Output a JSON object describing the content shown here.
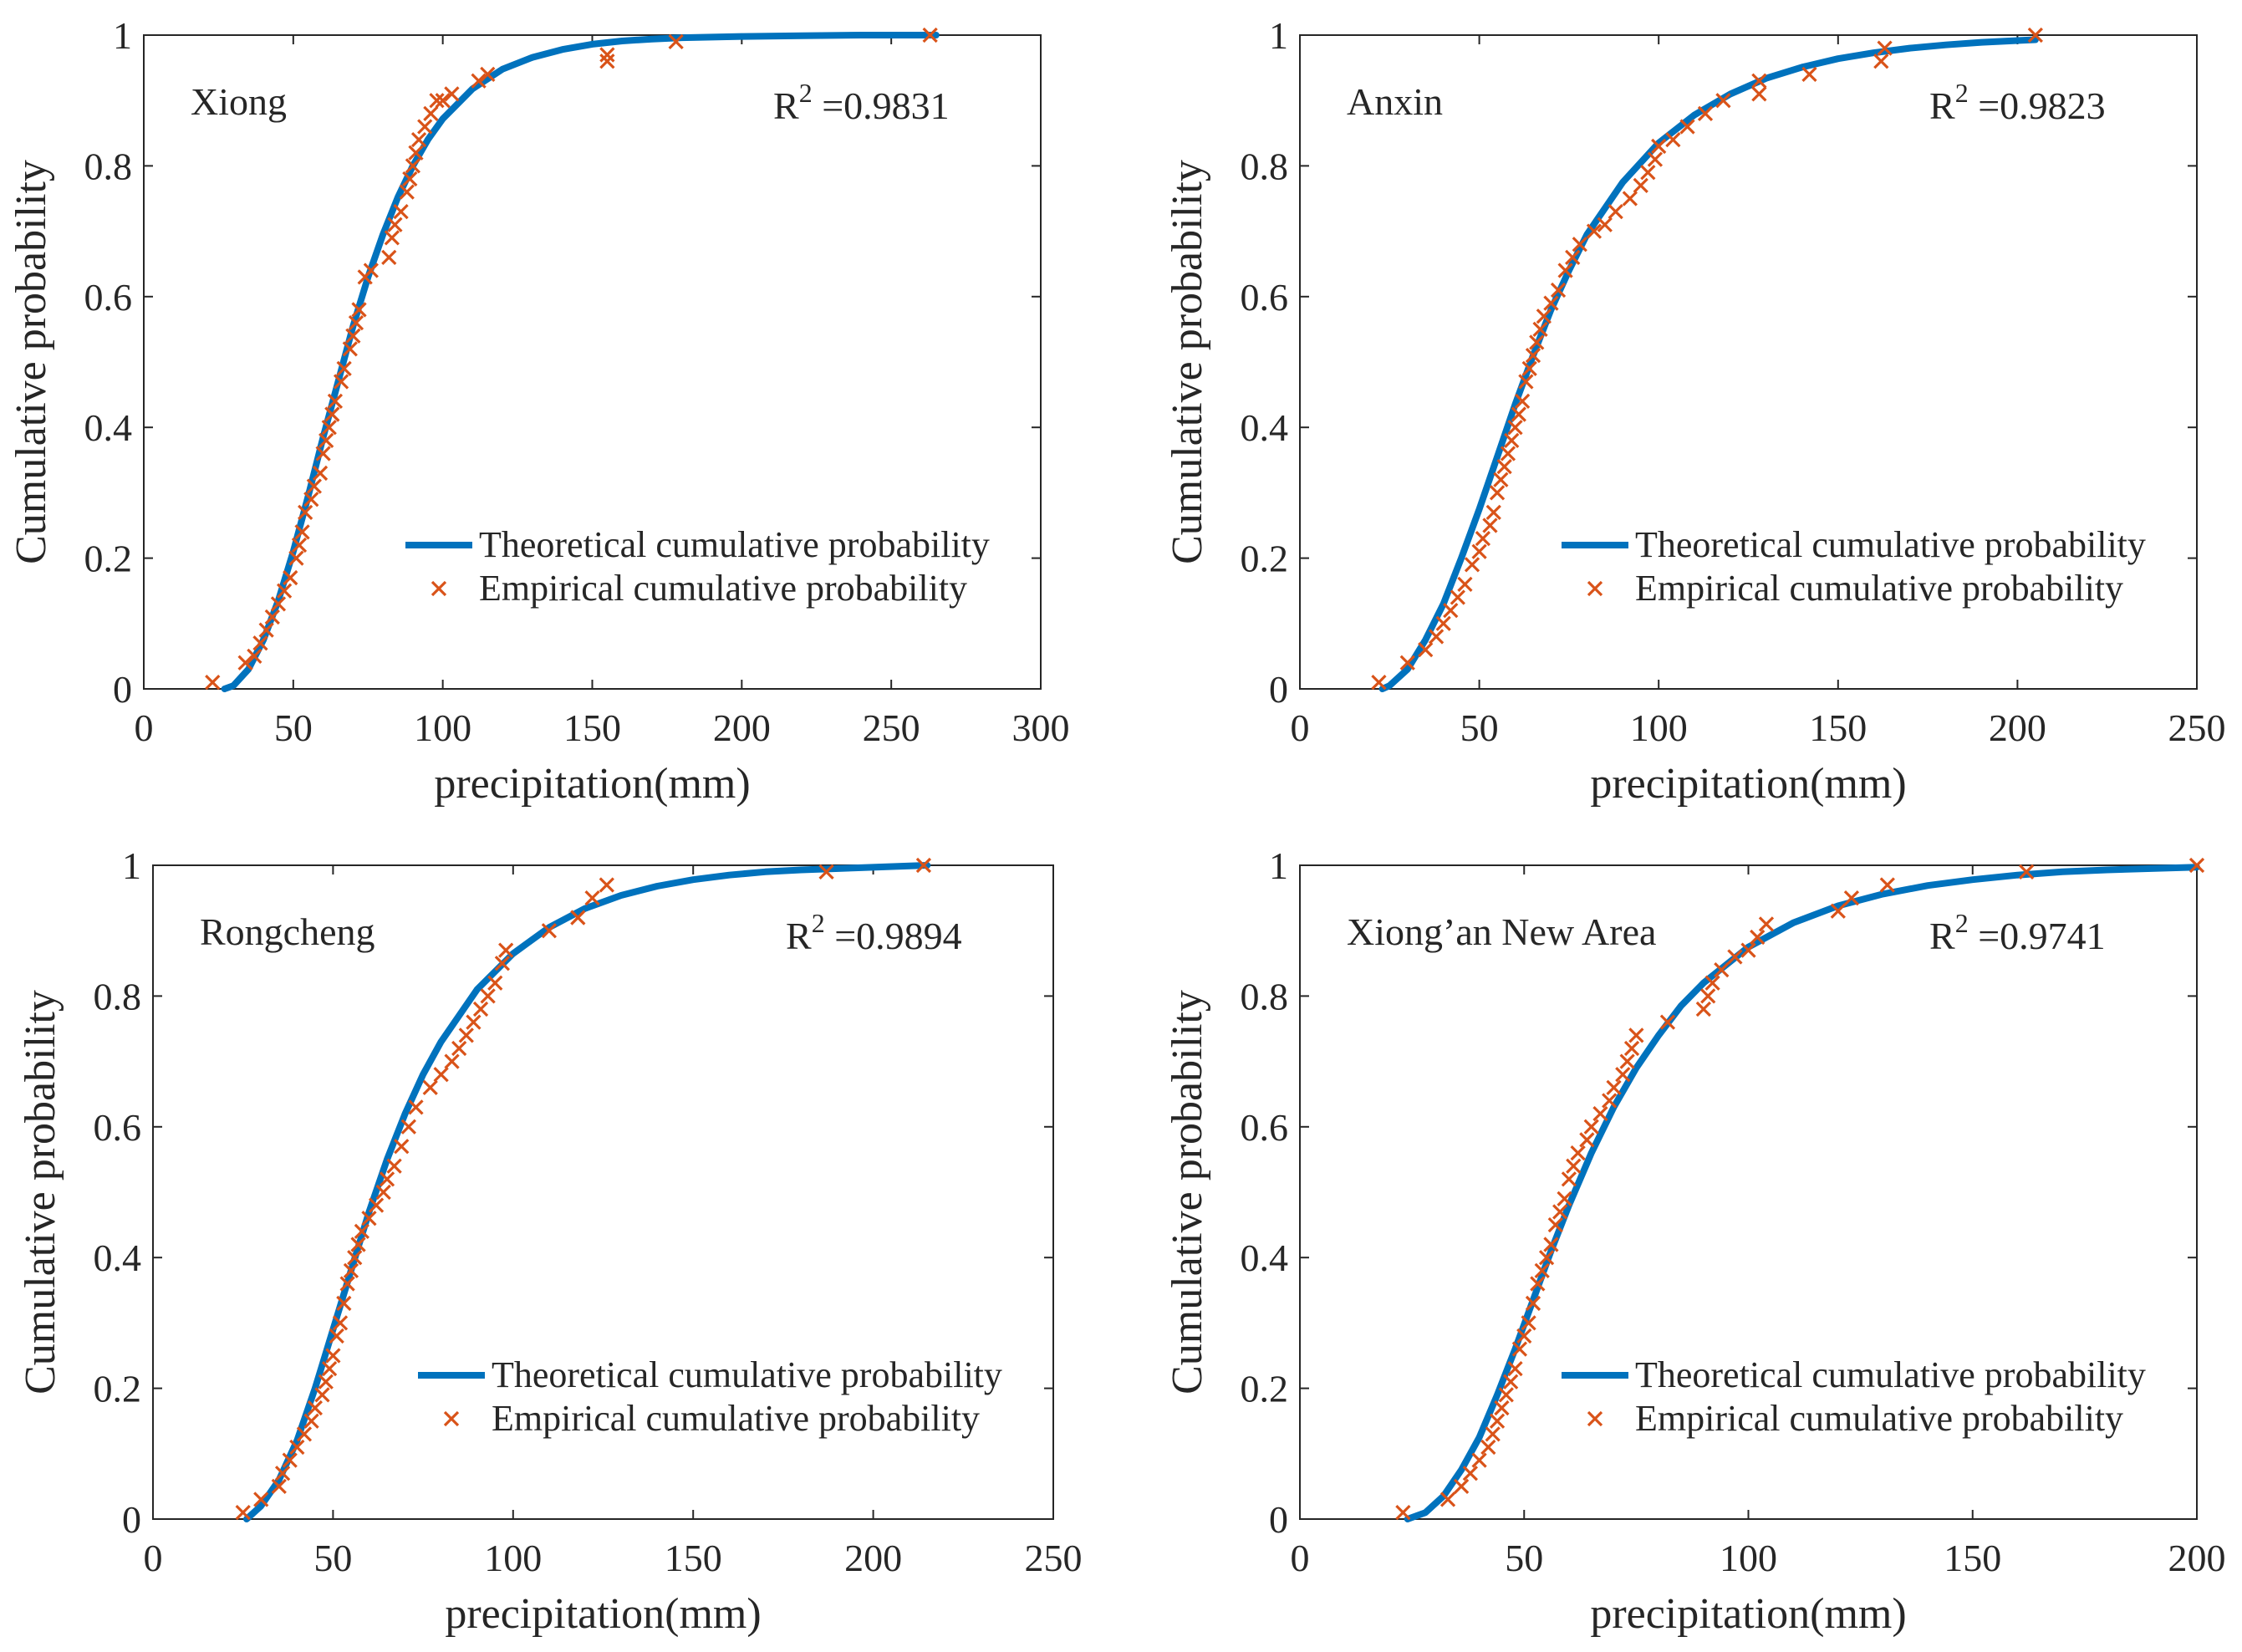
{
  "figure": {
    "theoretical_color": "#0072BD",
    "empirical_color": "#D95319",
    "axis_color": "#262626"
  },
  "chart_data": [
    {
      "type": "line",
      "title": "Xiong",
      "r2_label": "R",
      "r2_sup": "2",
      "r2_value": " =0.9831",
      "xlabel": "precipitation(mm)",
      "ylabel": "Cumulative probability",
      "xlim": [
        0,
        300
      ],
      "ylim": [
        0,
        1
      ],
      "xticks": [
        0,
        50,
        100,
        150,
        200,
        250,
        300
      ],
      "xtick_labels": [
        "0",
        "50",
        "100",
        "150",
        "200",
        "250",
        "300"
      ],
      "yticks": [
        0,
        0.2,
        0.4,
        0.6,
        0.8,
        1
      ],
      "ytick_labels": [
        "0",
        "0.2",
        "0.4",
        "0.6",
        "0.8",
        "1"
      ],
      "legend": [
        "Theoretical cumulative probability",
        "Empirical cumulative probability"
      ],
      "legend_position": "lower-right",
      "series": [
        {
          "name": "Theoretical cumulative probability",
          "kind": "line",
          "x": [
            27,
            30,
            35,
            40,
            45,
            50,
            55,
            60,
            65,
            70,
            75,
            80,
            85,
            90,
            95,
            100,
            110,
            120,
            130,
            140,
            150,
            160,
            170,
            180,
            200,
            220,
            240,
            265
          ],
          "y": [
            0,
            0.005,
            0.03,
            0.075,
            0.135,
            0.21,
            0.295,
            0.385,
            0.47,
            0.555,
            0.63,
            0.695,
            0.752,
            0.8,
            0.84,
            0.872,
            0.918,
            0.948,
            0.966,
            0.978,
            0.986,
            0.991,
            0.994,
            0.996,
            0.998,
            0.999,
            1.0,
            1.0
          ]
        },
        {
          "name": "Empirical cumulative probability",
          "kind": "marker",
          "x": [
            23,
            34,
            37,
            39,
            41,
            43,
            45,
            47,
            49,
            51,
            52,
            53,
            54,
            56,
            57,
            59,
            60,
            61,
            62,
            63,
            64,
            66,
            67,
            69,
            70,
            71,
            72,
            74,
            76,
            82,
            83,
            84,
            86,
            88,
            89,
            90,
            91,
            92,
            94,
            96,
            98,
            100,
            103,
            112,
            115,
            155,
            155,
            178,
            263
          ],
          "y": [
            0.01,
            0.04,
            0.05,
            0.07,
            0.09,
            0.11,
            0.13,
            0.15,
            0.17,
            0.2,
            0.22,
            0.24,
            0.27,
            0.29,
            0.31,
            0.33,
            0.36,
            0.38,
            0.4,
            0.42,
            0.44,
            0.47,
            0.49,
            0.52,
            0.54,
            0.56,
            0.58,
            0.63,
            0.64,
            0.66,
            0.69,
            0.71,
            0.73,
            0.76,
            0.78,
            0.8,
            0.82,
            0.84,
            0.86,
            0.88,
            0.9,
            0.9,
            0.91,
            0.93,
            0.94,
            0.96,
            0.97,
            0.99,
            1.0
          ]
        }
      ]
    },
    {
      "type": "line",
      "title": "Anxin",
      "r2_label": "R",
      "r2_sup": "2",
      "r2_value": " =0.9823",
      "xlabel": "precipitation(mm)",
      "ylabel": "Cumulative probability",
      "xlim": [
        0,
        250
      ],
      "ylim": [
        0,
        1
      ],
      "xticks": [
        0,
        50,
        100,
        150,
        200,
        250
      ],
      "xtick_labels": [
        "0",
        "50",
        "100",
        "150",
        "200",
        "250"
      ],
      "yticks": [
        0,
        0.2,
        0.4,
        0.6,
        0.8,
        1
      ],
      "ytick_labels": [
        "0",
        "0.2",
        "0.4",
        "0.6",
        "0.8",
        "1"
      ],
      "legend": [
        "Theoretical cumulative probability",
        "Empirical cumulative probability"
      ],
      "legend_position": "lower-right",
      "series": [
        {
          "name": "Theoretical cumulative probability",
          "kind": "line",
          "x": [
            23,
            25,
            30,
            35,
            40,
            45,
            50,
            55,
            60,
            65,
            70,
            75,
            80,
            90,
            100,
            110,
            120,
            130,
            140,
            150,
            160,
            170,
            180,
            190,
            205
          ],
          "y": [
            0,
            0.005,
            0.03,
            0.075,
            0.13,
            0.2,
            0.275,
            0.355,
            0.435,
            0.51,
            0.58,
            0.64,
            0.695,
            0.775,
            0.835,
            0.878,
            0.91,
            0.934,
            0.951,
            0.964,
            0.973,
            0.98,
            0.985,
            0.989,
            0.993
          ]
        },
        {
          "name": "Empirical cumulative probability",
          "kind": "marker",
          "x": [
            22,
            30,
            35,
            38,
            40,
            42,
            44,
            46,
            48,
            50,
            51,
            53,
            54,
            55,
            56,
            57,
            58,
            59,
            60,
            61,
            62,
            63,
            64,
            65,
            66,
            67,
            68,
            70,
            72,
            74,
            76,
            78,
            82,
            85,
            88,
            92,
            95,
            97,
            99,
            100,
            104,
            108,
            113,
            118,
            128,
            128,
            142,
            162,
            163,
            205
          ],
          "y": [
            0.01,
            0.04,
            0.06,
            0.08,
            0.1,
            0.12,
            0.14,
            0.16,
            0.19,
            0.21,
            0.23,
            0.25,
            0.27,
            0.3,
            0.32,
            0.34,
            0.36,
            0.38,
            0.4,
            0.42,
            0.44,
            0.47,
            0.49,
            0.51,
            0.53,
            0.55,
            0.57,
            0.59,
            0.61,
            0.64,
            0.66,
            0.68,
            0.7,
            0.71,
            0.73,
            0.75,
            0.77,
            0.79,
            0.81,
            0.83,
            0.84,
            0.86,
            0.88,
            0.9,
            0.91,
            0.93,
            0.94,
            0.96,
            0.98,
            1.0
          ]
        }
      ]
    },
    {
      "type": "line",
      "title": "Rongcheng",
      "r2_label": "R",
      "r2_sup": "2",
      "r2_value": " =0.9894",
      "xlabel": "precipitation(mm)",
      "ylabel": "Cumulative probability",
      "xlim": [
        0,
        250
      ],
      "ylim": [
        0,
        1
      ],
      "xticks": [
        0,
        50,
        100,
        150,
        200,
        250
      ],
      "xtick_labels": [
        "0",
        "50",
        "100",
        "150",
        "200",
        "250"
      ],
      "yticks": [
        0,
        0.2,
        0.4,
        0.6,
        0.8,
        1
      ],
      "ytick_labels": [
        "0",
        "0.2",
        "0.4",
        "0.6",
        "0.8",
        "1"
      ],
      "legend": [
        "Theoretical cumulative probability",
        "Empirical cumulative probability"
      ],
      "legend_position": "lower-right",
      "series": [
        {
          "name": "Theoretical cumulative probability",
          "kind": "line",
          "x": [
            26,
            30,
            35,
            40,
            45,
            50,
            55,
            60,
            65,
            70,
            75,
            80,
            90,
            100,
            110,
            120,
            130,
            140,
            150,
            160,
            170,
            180,
            195,
            215
          ],
          "y": [
            0,
            0.02,
            0.06,
            0.12,
            0.2,
            0.29,
            0.38,
            0.47,
            0.55,
            0.62,
            0.68,
            0.73,
            0.81,
            0.865,
            0.905,
            0.934,
            0.954,
            0.968,
            0.978,
            0.985,
            0.99,
            0.993,
            0.996,
            1.0
          ]
        },
        {
          "name": "Empirical cumulative probability",
          "kind": "marker",
          "x": [
            25,
            30,
            35,
            36,
            38,
            40,
            42,
            44,
            45,
            47,
            48,
            49,
            50,
            51,
            52,
            53,
            54,
            55,
            56,
            57,
            58,
            60,
            62,
            64,
            65,
            67,
            69,
            71,
            73,
            77,
            80,
            83,
            85,
            87,
            89,
            91,
            93,
            95,
            97,
            98,
            110,
            118,
            122,
            126,
            187,
            214
          ],
          "y": [
            0.01,
            0.03,
            0.05,
            0.07,
            0.09,
            0.11,
            0.13,
            0.15,
            0.17,
            0.19,
            0.21,
            0.23,
            0.25,
            0.28,
            0.3,
            0.33,
            0.36,
            0.38,
            0.4,
            0.42,
            0.44,
            0.46,
            0.48,
            0.5,
            0.52,
            0.54,
            0.57,
            0.6,
            0.63,
            0.66,
            0.68,
            0.7,
            0.72,
            0.74,
            0.76,
            0.78,
            0.8,
            0.82,
            0.85,
            0.87,
            0.9,
            0.92,
            0.95,
            0.97,
            0.99,
            1.0
          ]
        }
      ]
    },
    {
      "type": "line",
      "title": "Xiong’an New Area",
      "r2_label": "R",
      "r2_sup": "2",
      "r2_value": " =0.9741",
      "xlabel": "precipitation(mm)",
      "ylabel": "Cumulative probability",
      "xlim": [
        0,
        200
      ],
      "ylim": [
        0,
        1
      ],
      "xticks": [
        0,
        50,
        100,
        150,
        200
      ],
      "xtick_labels": [
        "0",
        "50",
        "100",
        "150",
        "200"
      ],
      "yticks": [
        0,
        0.2,
        0.4,
        0.6,
        0.8,
        1
      ],
      "ytick_labels": [
        "0",
        "0.2",
        "0.4",
        "0.6",
        "0.8",
        "1"
      ],
      "legend": [
        "Theoretical cumulative probability",
        "Empirical cumulative probability"
      ],
      "legend_position": "lower-right",
      "series": [
        {
          "name": "Theoretical cumulative probability",
          "kind": "line",
          "x": [
            24,
            28,
            32,
            36,
            40,
            44,
            48,
            52,
            56,
            60,
            65,
            70,
            75,
            80,
            85,
            90,
            100,
            110,
            120,
            130,
            140,
            150,
            160,
            170,
            180,
            200
          ],
          "y": [
            0,
            0.01,
            0.035,
            0.075,
            0.125,
            0.19,
            0.26,
            0.335,
            0.41,
            0.48,
            0.56,
            0.63,
            0.69,
            0.74,
            0.785,
            0.82,
            0.875,
            0.912,
            0.938,
            0.956,
            0.969,
            0.978,
            0.985,
            0.99,
            0.993,
            0.997
          ]
        },
        {
          "name": "Empirical cumulative probability",
          "kind": "marker",
          "x": [
            23,
            33,
            36,
            38,
            40,
            42,
            43,
            44,
            45,
            46,
            47,
            48,
            49,
            50,
            51,
            52,
            53,
            54,
            55,
            56,
            57,
            58,
            59,
            60,
            61,
            62,
            64,
            65,
            67,
            69,
            70,
            72,
            73,
            74,
            75,
            82,
            90,
            91,
            92,
            94,
            97,
            100,
            102,
            104,
            120,
            123,
            131,
            162,
            200
          ],
          "y": [
            0.01,
            0.03,
            0.05,
            0.07,
            0.09,
            0.11,
            0.13,
            0.15,
            0.17,
            0.19,
            0.21,
            0.23,
            0.26,
            0.28,
            0.3,
            0.33,
            0.36,
            0.38,
            0.4,
            0.42,
            0.45,
            0.47,
            0.49,
            0.52,
            0.54,
            0.56,
            0.58,
            0.6,
            0.62,
            0.64,
            0.66,
            0.68,
            0.7,
            0.72,
            0.74,
            0.76,
            0.78,
            0.8,
            0.82,
            0.84,
            0.86,
            0.87,
            0.89,
            0.91,
            0.93,
            0.95,
            0.97,
            0.99,
            1.0
          ]
        }
      ]
    }
  ]
}
